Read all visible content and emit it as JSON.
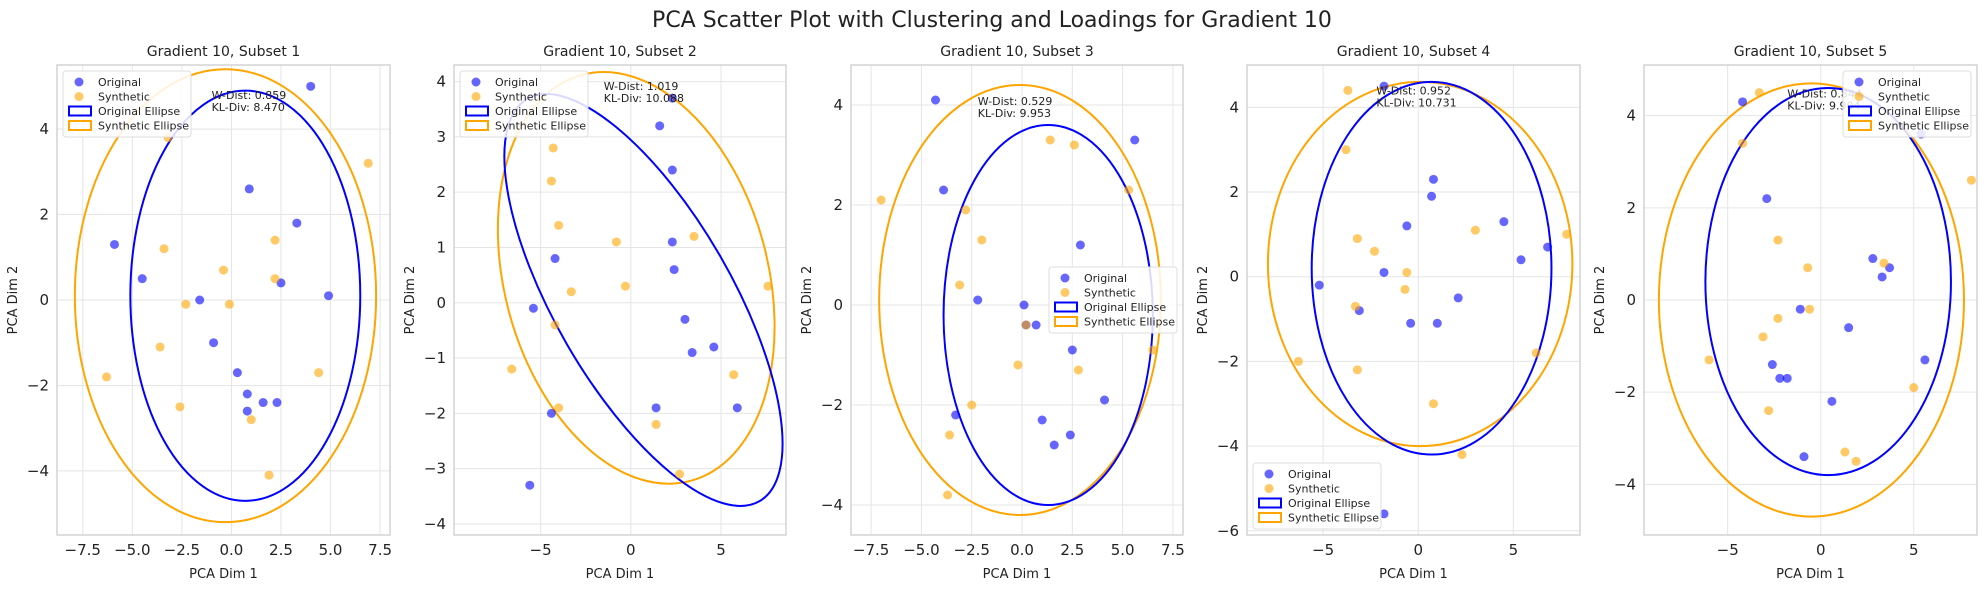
{
  "figure": {
    "title": "PCA Scatter Plot with Clustering and Loadings for Gradient 10"
  },
  "colors": {
    "original": "#0000ff",
    "synthetic": "#ffa500",
    "grid": "#e5e5e5",
    "frame": "#cccccc"
  },
  "legend_labels": [
    "Original",
    "Synthetic",
    "Original Ellipse",
    "Synthetic Ellipse"
  ],
  "chart_data": [
    {
      "type": "scatter",
      "title": "Gradient 10, Subset 1",
      "xlabel": "PCA Dim 1",
      "ylabel": "PCA Dim 2",
      "xlim": [
        -8.8,
        8.0
      ],
      "ylim": [
        -5.5,
        5.5
      ],
      "xticks": [
        -7.5,
        -5.0,
        -2.5,
        0.0,
        2.5,
        5.0,
        7.5
      ],
      "xtick_labels": [
        "−7.5",
        "−5.0",
        "−2.5",
        "0.0",
        "2.5",
        "5.0",
        "7.5"
      ],
      "yticks": [
        -4,
        -2,
        0,
        2,
        4
      ],
      "ytick_labels": [
        "−4",
        "−2",
        "0",
        "2",
        "4"
      ],
      "legend_position": "upper-left",
      "stat_anchor": [
        -1.0,
        4.7
      ],
      "stats": [
        "W-Dist: 0.859",
        "KL-Div: 8.470"
      ],
      "ellipses": {
        "original": {
          "cx": 0.7,
          "cy": 0.1,
          "rx": 5.8,
          "ry": 4.8,
          "angle": 0
        },
        "synthetic": {
          "cx": -0.3,
          "cy": 0.1,
          "rx": 7.6,
          "ry": 5.3,
          "angle": 0
        }
      },
      "series": [
        {
          "name": "Original",
          "points": [
            [
              -5.9,
              1.3
            ],
            [
              -4.5,
              0.5
            ],
            [
              -1.6,
              0.0
            ],
            [
              -0.9,
              -1.0
            ],
            [
              0.9,
              2.6
            ],
            [
              3.3,
              1.8
            ],
            [
              4.0,
              5.0
            ],
            [
              4.9,
              0.1
            ],
            [
              2.5,
              0.4
            ],
            [
              0.3,
              -1.7
            ],
            [
              0.8,
              -2.2
            ],
            [
              0.8,
              -2.6
            ],
            [
              1.6,
              -2.4
            ],
            [
              2.3,
              -2.4
            ]
          ]
        },
        {
          "name": "Synthetic",
          "points": [
            [
              -3.2,
              3.8
            ],
            [
              -3.4,
              1.2
            ],
            [
              -2.3,
              -0.1
            ],
            [
              -3.6,
              -1.1
            ],
            [
              -2.6,
              -2.5
            ],
            [
              -0.4,
              0.7
            ],
            [
              -0.1,
              -0.1
            ],
            [
              2.2,
              1.4
            ],
            [
              2.2,
              0.5
            ],
            [
              1.0,
              -2.8
            ],
            [
              1.9,
              -4.1
            ],
            [
              4.4,
              -1.7
            ],
            [
              6.9,
              3.2
            ],
            [
              -6.3,
              -1.8
            ]
          ]
        }
      ]
    },
    {
      "type": "scatter",
      "title": "Gradient 10, Subset 2",
      "xlabel": "PCA Dim 1",
      "ylabel": "PCA Dim 2",
      "xlim": [
        -9.8,
        8.6
      ],
      "ylim": [
        -4.2,
        4.3
      ],
      "xticks": [
        -5,
        0,
        5
      ],
      "xtick_labels": [
        "−5",
        "0",
        "5"
      ],
      "yticks": [
        -4,
        -3,
        -2,
        -1,
        0,
        1,
        2,
        3,
        4
      ],
      "ytick_labels": [
        "−4",
        "−3",
        "−2",
        "−1",
        "0",
        "1",
        "2",
        "3",
        "4"
      ],
      "legend_position": "upper-left",
      "stat_anchor": [
        -1.5,
        3.85
      ],
      "stats": [
        "W-Dist: 1.019",
        "KL-Div: 10.088"
      ],
      "ellipses": {
        "original": {
          "cx": 0.7,
          "cy": 0.05,
          "rx": 4.9,
          "ry": 4.2,
          "angle": -30
        },
        "synthetic": {
          "cx": 0.3,
          "cy": 0.45,
          "rx": 7.3,
          "ry": 3.8,
          "angle": -15
        }
      },
      "series": [
        {
          "name": "Original",
          "points": [
            [
              -5.4,
              -0.1
            ],
            [
              -4.2,
              0.8
            ],
            [
              -4.4,
              -2.0
            ],
            [
              -5.6,
              -3.3
            ],
            [
              1.6,
              3.2
            ],
            [
              2.3,
              3.7
            ],
            [
              2.3,
              2.4
            ],
            [
              2.3,
              1.1
            ],
            [
              2.4,
              0.6
            ],
            [
              3.0,
              -0.3
            ],
            [
              3.4,
              -0.9
            ],
            [
              4.6,
              -0.8
            ],
            [
              5.9,
              -1.9
            ],
            [
              1.4,
              -1.9
            ]
          ]
        },
        {
          "name": "Synthetic",
          "points": [
            [
              -4.3,
              2.8
            ],
            [
              -4.4,
              2.2
            ],
            [
              -4.0,
              1.4
            ],
            [
              -3.3,
              0.2
            ],
            [
              -0.8,
              1.1
            ],
            [
              -0.3,
              0.3
            ],
            [
              3.5,
              1.2
            ],
            [
              -4.2,
              -0.4
            ],
            [
              -4.0,
              -1.9
            ],
            [
              -6.6,
              -1.2
            ],
            [
              1.4,
              -2.2
            ],
            [
              2.7,
              -3.1
            ],
            [
              5.7,
              -1.3
            ],
            [
              7.6,
              0.3
            ]
          ]
        }
      ]
    },
    {
      "type": "scatter",
      "title": "Gradient 10, Subset 3",
      "xlabel": "PCA Dim 1",
      "ylabel": "PCA Dim 2",
      "xlim": [
        -8.5,
        8.0
      ],
      "ylim": [
        -4.6,
        4.8
      ],
      "xticks": [
        -7.5,
        -5.0,
        -2.5,
        0.0,
        2.5,
        5.0,
        7.5
      ],
      "xtick_labels": [
        "−7.5",
        "−5.0",
        "−2.5",
        "0.0",
        "2.5",
        "5.0",
        "7.5"
      ],
      "yticks": [
        -4,
        -2,
        0,
        2,
        4
      ],
      "ytick_labels": [
        "−4",
        "−2",
        "0",
        "2",
        "4"
      ],
      "legend_position": "center-right",
      "stat_anchor": [
        -2.2,
        4.0
      ],
      "stats": [
        "W-Dist: 0.529",
        "KL-Div: 9.953"
      ],
      "ellipses": {
        "original": {
          "cx": 1.3,
          "cy": -0.2,
          "rx": 5.2,
          "ry": 3.8,
          "angle": 0
        },
        "synthetic": {
          "cx": -0.1,
          "cy": 0.1,
          "rx": 7.0,
          "ry": 4.3,
          "angle": 0
        }
      },
      "series": [
        {
          "name": "Original",
          "points": [
            [
              -4.3,
              4.1
            ],
            [
              -3.9,
              2.3
            ],
            [
              -3.3,
              -2.2
            ],
            [
              -2.2,
              0.1
            ],
            [
              0.1,
              0.0
            ],
            [
              0.7,
              -0.4
            ],
            [
              2.9,
              1.2
            ],
            [
              5.6,
              3.3
            ],
            [
              2.5,
              -0.9
            ],
            [
              1.0,
              -2.3
            ],
            [
              1.6,
              -2.8
            ],
            [
              2.4,
              -2.6
            ],
            [
              4.1,
              -1.9
            ],
            [
              0.2,
              -0.4
            ]
          ]
        },
        {
          "name": "Synthetic",
          "points": [
            [
              -7.0,
              2.1
            ],
            [
              -2.8,
              1.9
            ],
            [
              -2.0,
              1.3
            ],
            [
              -3.1,
              0.4
            ],
            [
              -2.5,
              -2.0
            ],
            [
              -3.6,
              -2.6
            ],
            [
              -3.7,
              -3.8
            ],
            [
              -0.2,
              -1.2
            ],
            [
              0.2,
              -0.4
            ],
            [
              1.4,
              3.3
            ],
            [
              2.6,
              3.2
            ],
            [
              5.3,
              2.3
            ],
            [
              6.5,
              -0.9
            ],
            [
              2.8,
              -1.3
            ]
          ]
        }
      ]
    },
    {
      "type": "scatter",
      "title": "Gradient 10, Subset 4",
      "xlabel": "PCA Dim 1",
      "ylabel": "PCA Dim 2",
      "xlim": [
        -9.0,
        8.5
      ],
      "ylim": [
        -6.1,
        5.0
      ],
      "xticks": [
        -5,
        0,
        5
      ],
      "xtick_labels": [
        "−5",
        "0",
        "5"
      ],
      "yticks": [
        -6,
        -4,
        -2,
        0,
        2,
        4
      ],
      "ytick_labels": [
        "−6",
        "−4",
        "−2",
        "0",
        "2",
        "4"
      ],
      "legend_position": "lower-left",
      "stat_anchor": [
        -2.2,
        4.3
      ],
      "stats": [
        "W-Dist: 0.952",
        "KL-Div: 10.731"
      ],
      "ellipses": {
        "original": {
          "cx": 0.7,
          "cy": 0.2,
          "rx": 6.3,
          "ry": 4.4,
          "angle": 0
        },
        "synthetic": {
          "cx": 0.1,
          "cy": 0.3,
          "rx": 8.0,
          "ry": 4.3,
          "angle": 0
        }
      },
      "series": [
        {
          "name": "Original",
          "points": [
            [
              -5.2,
              -0.2
            ],
            [
              -3.1,
              -0.8
            ],
            [
              -1.8,
              4.5
            ],
            [
              -1.8,
              0.1
            ],
            [
              -0.6,
              1.2
            ],
            [
              0.8,
              2.3
            ],
            [
              0.7,
              1.9
            ],
            [
              2.1,
              -0.5
            ],
            [
              -0.4,
              -1.1
            ],
            [
              1.0,
              -1.1
            ],
            [
              4.5,
              1.3
            ],
            [
              5.4,
              0.4
            ],
            [
              6.8,
              0.7
            ],
            [
              -1.8,
              -5.6
            ]
          ]
        },
        {
          "name": "Synthetic",
          "points": [
            [
              -3.7,
              4.4
            ],
            [
              -3.8,
              3.0
            ],
            [
              -3.2,
              0.9
            ],
            [
              -2.3,
              0.6
            ],
            [
              -3.3,
              -0.7
            ],
            [
              -3.2,
              -2.2
            ],
            [
              -6.3,
              -2.0
            ],
            [
              -0.7,
              -0.3
            ],
            [
              -0.6,
              0.1
            ],
            [
              0.8,
              -3.0
            ],
            [
              2.3,
              -4.2
            ],
            [
              3.0,
              1.1
            ],
            [
              6.2,
              -1.8
            ],
            [
              7.8,
              1.0
            ]
          ]
        }
      ]
    },
    {
      "type": "scatter",
      "title": "Gradient 10, Subset 5",
      "xlabel": "PCA Dim 1",
      "ylabel": "PCA Dim 2",
      "xlim": [
        -9.5,
        8.4
      ],
      "ylim": [
        -5.1,
        5.1
      ],
      "xticks": [
        -5,
        0,
        5
      ],
      "xtick_labels": [
        "−5",
        "0",
        "5"
      ],
      "yticks": [
        -4,
        -2,
        0,
        2,
        4
      ],
      "ytick_labels": [
        "−4",
        "−2",
        "0",
        "2",
        "4"
      ],
      "legend_position": "upper-right",
      "stat_anchor": [
        -1.8,
        4.4
      ],
      "stats": [
        "W-Dist: 0.844",
        "KL-Div: 9.904"
      ],
      "ellipses": {
        "original": {
          "cx": 0.4,
          "cy": 0.4,
          "rx": 6.6,
          "ry": 4.2,
          "angle": 0
        },
        "synthetic": {
          "cx": -0.5,
          "cy": 0.0,
          "rx": 8.2,
          "ry": 4.7,
          "angle": 0
        }
      },
      "series": [
        {
          "name": "Original",
          "points": [
            [
              -4.2,
              4.3
            ],
            [
              -2.9,
              2.2
            ],
            [
              -2.6,
              -1.4
            ],
            [
              -2.2,
              -1.7
            ],
            [
              -1.8,
              -1.7
            ],
            [
              -1.1,
              -0.2
            ],
            [
              2.8,
              0.9
            ],
            [
              3.7,
              0.7
            ],
            [
              3.3,
              0.5
            ],
            [
              1.5,
              -0.6
            ],
            [
              0.6,
              -2.2
            ],
            [
              -0.9,
              -3.4
            ],
            [
              5.4,
              3.6
            ],
            [
              5.6,
              -1.3
            ]
          ]
        },
        {
          "name": "Synthetic",
          "points": [
            [
              -3.3,
              4.5
            ],
            [
              -4.2,
              3.4
            ],
            [
              -2.3,
              1.3
            ],
            [
              -2.3,
              -0.4
            ],
            [
              -3.1,
              -0.8
            ],
            [
              -2.8,
              -2.4
            ],
            [
              -6.0,
              -1.3
            ],
            [
              -0.7,
              0.7
            ],
            [
              -0.6,
              -0.2
            ],
            [
              1.3,
              -3.3
            ],
            [
              1.9,
              -3.5
            ],
            [
              3.4,
              0.8
            ],
            [
              5.0,
              -1.9
            ],
            [
              8.1,
              2.6
            ]
          ]
        }
      ]
    }
  ]
}
